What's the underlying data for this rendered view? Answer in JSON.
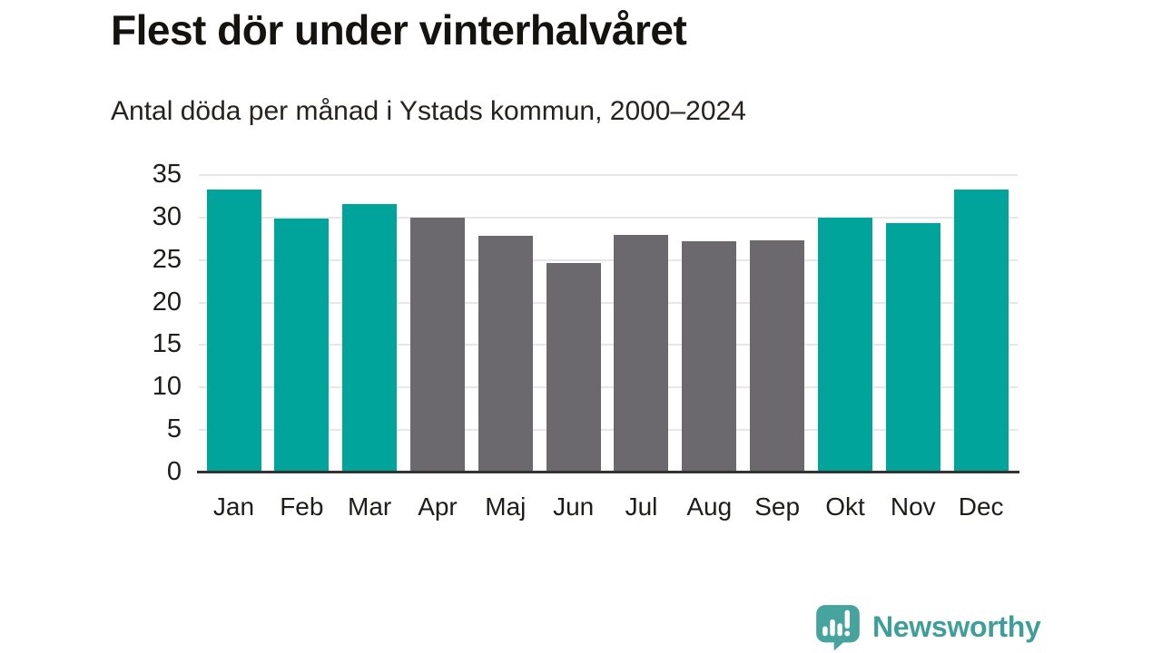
{
  "chart_data": {
    "type": "bar",
    "title": "Flest dör under vinterhalvåret",
    "subtitle": "Antal döda per månad i Ystads kommun, 2000–2024",
    "categories": [
      "Jan",
      "Feb",
      "Mar",
      "Apr",
      "Maj",
      "Jun",
      "Jul",
      "Aug",
      "Sep",
      "Okt",
      "Nov",
      "Dec"
    ],
    "values": [
      33.3,
      29.9,
      31.6,
      30.0,
      27.9,
      24.6,
      28.0,
      27.2,
      27.3,
      30.0,
      29.3,
      33.3
    ],
    "bar_groups": [
      "winter",
      "winter",
      "winter",
      "summer",
      "summer",
      "summer",
      "summer",
      "summer",
      "summer",
      "winter",
      "winter",
      "winter"
    ],
    "group_colors": {
      "winter": "#00a49a",
      "summer": "#6c696e"
    },
    "xlabel": "",
    "ylabel": "",
    "ylim": [
      0,
      35
    ],
    "y_ticks": [
      0,
      5,
      10,
      15,
      20,
      25,
      30,
      35
    ],
    "grid": "horizontal",
    "gridline_color": "#e7e7e7",
    "axis_line_color": "#333333",
    "legend": "none"
  },
  "branding": {
    "logo_text": "Newsworthy",
    "logo_text_color": "#3f9e99",
    "logo_icon_color": "#46a39d",
    "logo_icon_glyph_color": "#ffffff"
  }
}
